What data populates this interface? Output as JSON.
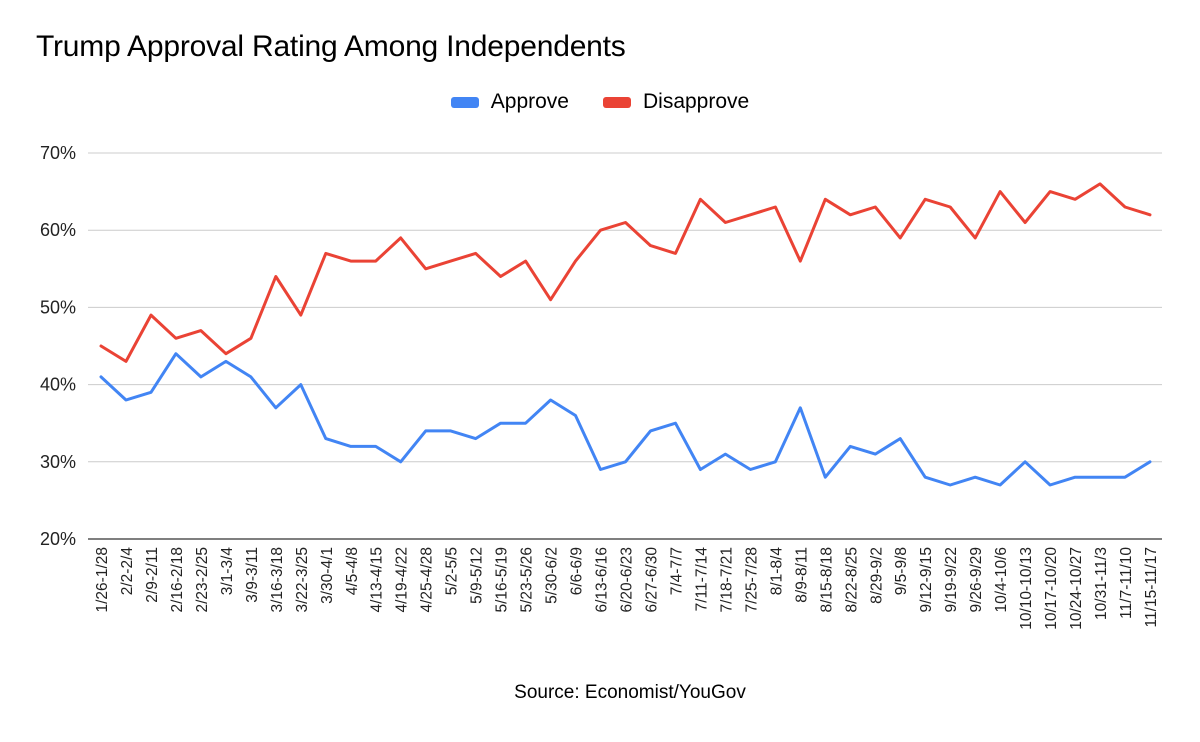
{
  "chart_data": {
    "type": "line",
    "title": "Trump Approval Rating Among Independents",
    "source": "Source: Economist/YouGov",
    "legend_position": "top",
    "grid": true,
    "ylim": [
      20,
      70
    ],
    "yticks": [
      "20%",
      "30%",
      "40%",
      "50%",
      "60%",
      "70%"
    ],
    "categories": [
      "1/26-1/28",
      "2/2-2/4",
      "2/9-2/11",
      "2/16-2/18",
      "2/23-2/25",
      "3/1-3/4",
      "3/9-3/11",
      "3/16-3/18",
      "3/22-3/25",
      "3/30-4/1",
      "4/5-4/8",
      "4/13-4/15",
      "4/19-4/22",
      "4/25-4/28",
      "5/2-5/5",
      "5/9-5/12",
      "5/16-5/19",
      "5/23-5/26",
      "5/30-6/2",
      "6/6-6/9",
      "6/13-6/16",
      "6/20-6/23",
      "6/27-6/30",
      "7/4-7/7",
      "7/11-7/14",
      "7/18-7/21",
      "7/25-7/28",
      "8/1-8/4",
      "8/9-8/11",
      "8/15-8/18",
      "8/22-8/25",
      "8/29-9/2",
      "9/5-9/8",
      "9/12-9/15",
      "9/19-9/22",
      "9/26-9/29",
      "10/4-10/6",
      "10/10-10/13",
      "10/17-10/20",
      "10/24-10/27",
      "10/31-11/3",
      "11/7-11/10",
      "11/15-11/17"
    ],
    "series": [
      {
        "name": "Approve",
        "color": "#4285f4",
        "values": [
          41,
          38,
          39,
          44,
          41,
          43,
          41,
          37,
          40,
          33,
          32,
          32,
          30,
          34,
          34,
          33,
          35,
          35,
          38,
          36,
          29,
          30,
          34,
          35,
          29,
          31,
          29,
          30,
          37,
          28,
          32,
          31,
          33,
          28,
          27,
          28,
          27,
          30,
          27,
          28,
          28,
          28,
          30
        ]
      },
      {
        "name": "Disapprove",
        "color": "#ea4335",
        "values": [
          45,
          43,
          49,
          46,
          47,
          44,
          46,
          54,
          49,
          57,
          56,
          56,
          59,
          55,
          56,
          57,
          54,
          56,
          51,
          56,
          60,
          61,
          58,
          57,
          64,
          61,
          62,
          63,
          56,
          64,
          62,
          63,
          59,
          64,
          63,
          59,
          65,
          61,
          65,
          64,
          66,
          63,
          62
        ]
      }
    ]
  }
}
